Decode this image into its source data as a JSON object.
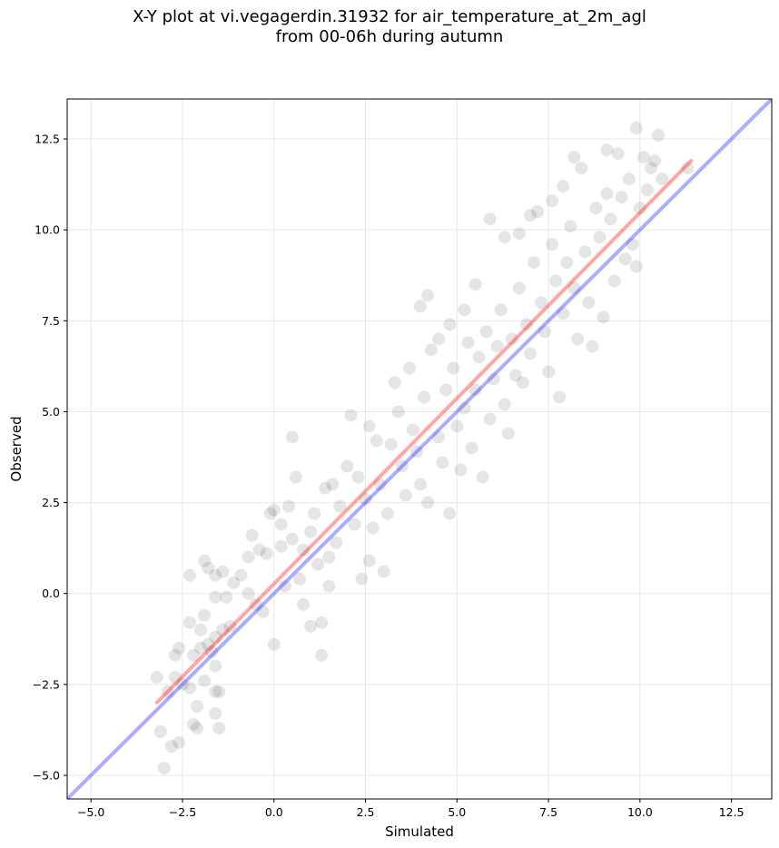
{
  "chart_data": {
    "type": "scatter",
    "title": "X-Y plot at vi.vegagerdin.31932 for air_temperature_at_2m_agl",
    "subtitle": "from 00-06h during autumn",
    "xlabel": "Simulated",
    "ylabel": "Observed",
    "xlim": [
      -5.65,
      13.6
    ],
    "ylim": [
      -5.65,
      13.6
    ],
    "xticks": [
      -5.0,
      -2.5,
      0.0,
      2.5,
      5.0,
      7.5,
      10.0,
      12.5
    ],
    "yticks": [
      -5.0,
      -2.5,
      0.0,
      2.5,
      5.0,
      7.5,
      10.0,
      12.5
    ],
    "xtick_labels": [
      "−5.0",
      "−2.5",
      "0.0",
      "2.5",
      "5.0",
      "7.5",
      "10.0",
      "12.5"
    ],
    "ytick_labels": [
      "−5.0",
      "−2.5",
      "0.0",
      "2.5",
      "5.0",
      "7.5",
      "10.0",
      "12.5"
    ],
    "grid": true,
    "point_color": "#000000",
    "point_opacity": 0.1,
    "lines": [
      {
        "kind": "identity",
        "color": "#0000ff",
        "opacity": 0.32,
        "x": [
          -5.65,
          13.6
        ],
        "y": [
          -5.65,
          13.6
        ]
      },
      {
        "kind": "regression",
        "color": "#ff0000",
        "opacity": 0.35,
        "x": [
          -3.2,
          11.4
        ],
        "y": [
          -3.0,
          11.9
        ]
      }
    ],
    "points": [
      [
        -3.0,
        -4.8
      ],
      [
        -3.1,
        -3.8
      ],
      [
        -2.8,
        -4.2
      ],
      [
        -2.6,
        -4.1
      ],
      [
        -2.2,
        -3.6
      ],
      [
        -2.1,
        -3.7
      ],
      [
        -1.5,
        -3.7
      ],
      [
        -2.1,
        -3.1
      ],
      [
        -1.6,
        -3.3
      ],
      [
        -3.2,
        -2.3
      ],
      [
        -2.9,
        -2.7
      ],
      [
        -2.7,
        -2.3
      ],
      [
        -2.5,
        -2.5
      ],
      [
        -2.3,
        -2.6
      ],
      [
        -1.9,
        -2.4
      ],
      [
        -1.6,
        -2.0
      ],
      [
        -1.6,
        -2.7
      ],
      [
        -1.5,
        -2.7
      ],
      [
        -2.7,
        -1.7
      ],
      [
        -2.6,
        -1.5
      ],
      [
        -2.2,
        -1.7
      ],
      [
        -2.0,
        -1.5
      ],
      [
        -1.8,
        -1.4
      ],
      [
        -1.7,
        -1.6
      ],
      [
        -1.6,
        -1.2
      ],
      [
        -2.0,
        -1.0
      ],
      [
        -2.3,
        -0.8
      ],
      [
        -1.9,
        -0.6
      ],
      [
        -1.4,
        -1.0
      ],
      [
        -1.2,
        -0.9
      ],
      [
        -2.3,
        0.5
      ],
      [
        -1.6,
        0.5
      ],
      [
        -1.4,
        0.6
      ],
      [
        -1.9,
        0.9
      ],
      [
        -1.8,
        0.7
      ],
      [
        -1.6,
        -0.1
      ],
      [
        -1.3,
        -0.1
      ],
      [
        -1.1,
        0.3
      ],
      [
        -0.9,
        0.5
      ],
      [
        -0.7,
        0.0
      ],
      [
        -0.5,
        -0.3
      ],
      [
        -0.7,
        1.0
      ],
      [
        -0.6,
        1.6
      ],
      [
        -0.4,
        1.2
      ],
      [
        -0.2,
        1.1
      ],
      [
        0.0,
        2.3
      ],
      [
        -0.1,
        2.2
      ],
      [
        0.2,
        1.3
      ],
      [
        -0.3,
        -0.5
      ],
      [
        0.0,
        -1.4
      ],
      [
        0.3,
        0.2
      ],
      [
        0.5,
        4.3
      ],
      [
        0.7,
        0.4
      ],
      [
        0.8,
        -0.3
      ],
      [
        1.0,
        -0.9
      ],
      [
        1.3,
        -0.8
      ],
      [
        1.3,
        -1.7
      ],
      [
        1.5,
        0.2
      ],
      [
        0.4,
        2.4
      ],
      [
        0.6,
        3.2
      ],
      [
        0.2,
        1.9
      ],
      [
        0.5,
        1.5
      ],
      [
        0.8,
        1.2
      ],
      [
        1.0,
        1.7
      ],
      [
        1.1,
        2.2
      ],
      [
        1.2,
        0.8
      ],
      [
        1.5,
        1.0
      ],
      [
        1.4,
        2.9
      ],
      [
        1.6,
        3.0
      ],
      [
        1.7,
        1.4
      ],
      [
        1.8,
        2.4
      ],
      [
        2.0,
        3.5
      ],
      [
        2.2,
        1.9
      ],
      [
        2.4,
        0.4
      ],
      [
        2.6,
        0.9
      ],
      [
        2.1,
        4.9
      ],
      [
        2.6,
        4.6
      ],
      [
        2.8,
        4.2
      ],
      [
        2.3,
        3.2
      ],
      [
        2.5,
        2.6
      ],
      [
        2.7,
        1.8
      ],
      [
        3.0,
        0.6
      ],
      [
        2.9,
        3.0
      ],
      [
        3.1,
        2.2
      ],
      [
        3.2,
        4.1
      ],
      [
        3.3,
        5.8
      ],
      [
        3.5,
        3.5
      ],
      [
        3.6,
        2.7
      ],
      [
        3.8,
        4.5
      ],
      [
        4.0,
        3.0
      ],
      [
        3.4,
        5.0
      ],
      [
        3.7,
        6.2
      ],
      [
        3.9,
        3.9
      ],
      [
        4.1,
        5.4
      ],
      [
        4.2,
        2.5
      ],
      [
        4.3,
        6.7
      ],
      [
        4.5,
        4.3
      ],
      [
        4.6,
        3.6
      ],
      [
        4.7,
        5.6
      ],
      [
        4.8,
        7.4
      ],
      [
        4.9,
        6.2
      ],
      [
        5.0,
        4.6
      ],
      [
        4.0,
        7.9
      ],
      [
        4.2,
        8.2
      ],
      [
        4.5,
        7.0
      ],
      [
        4.8,
        2.2
      ],
      [
        5.1,
        3.4
      ],
      [
        5.2,
        5.1
      ],
      [
        5.3,
        6.9
      ],
      [
        5.4,
        4.0
      ],
      [
        5.5,
        5.6
      ],
      [
        5.6,
        6.5
      ],
      [
        5.7,
        3.2
      ],
      [
        5.8,
        7.2
      ],
      [
        5.9,
        4.8
      ],
      [
        6.0,
        5.9
      ],
      [
        6.1,
        6.8
      ],
      [
        6.2,
        7.8
      ],
      [
        6.3,
        5.2
      ],
      [
        6.4,
        4.4
      ],
      [
        5.2,
        7.8
      ],
      [
        5.5,
        8.5
      ],
      [
        5.9,
        10.3
      ],
      [
        6.3,
        9.8
      ],
      [
        6.5,
        7.0
      ],
      [
        6.6,
        6.0
      ],
      [
        6.7,
        8.4
      ],
      [
        6.8,
        5.8
      ],
      [
        6.9,
        7.4
      ],
      [
        7.0,
        6.6
      ],
      [
        7.1,
        9.1
      ],
      [
        7.2,
        10.5
      ],
      [
        7.3,
        8.0
      ],
      [
        7.4,
        7.2
      ],
      [
        7.5,
        6.1
      ],
      [
        7.6,
        9.6
      ],
      [
        7.7,
        8.6
      ],
      [
        7.8,
        5.4
      ],
      [
        7.9,
        7.7
      ],
      [
        8.0,
        9.1
      ],
      [
        8.1,
        10.1
      ],
      [
        8.2,
        8.4
      ],
      [
        8.3,
        7.0
      ],
      [
        8.4,
        11.7
      ],
      [
        8.5,
        9.4
      ],
      [
        8.6,
        8.0
      ],
      [
        8.7,
        6.8
      ],
      [
        8.8,
        10.6
      ],
      [
        8.9,
        9.8
      ],
      [
        9.0,
        7.6
      ],
      [
        9.1,
        11.0
      ],
      [
        9.2,
        10.3
      ],
      [
        9.3,
        8.6
      ],
      [
        9.4,
        12.1
      ],
      [
        9.5,
        10.9
      ],
      [
        9.6,
        9.2
      ],
      [
        9.7,
        11.4
      ],
      [
        9.8,
        9.6
      ],
      [
        9.9,
        12.8
      ],
      [
        10.0,
        10.6
      ],
      [
        10.1,
        12.0
      ],
      [
        10.2,
        11.1
      ],
      [
        10.3,
        11.7
      ],
      [
        10.4,
        11.9
      ],
      [
        10.5,
        12.6
      ],
      [
        10.6,
        11.4
      ],
      [
        11.3,
        11.7
      ],
      [
        9.9,
        9.0
      ],
      [
        7.6,
        10.8
      ],
      [
        7.9,
        11.2
      ],
      [
        8.2,
        12.0
      ],
      [
        9.1,
        12.2
      ],
      [
        6.7,
        9.9
      ],
      [
        7.0,
        10.4
      ]
    ]
  }
}
